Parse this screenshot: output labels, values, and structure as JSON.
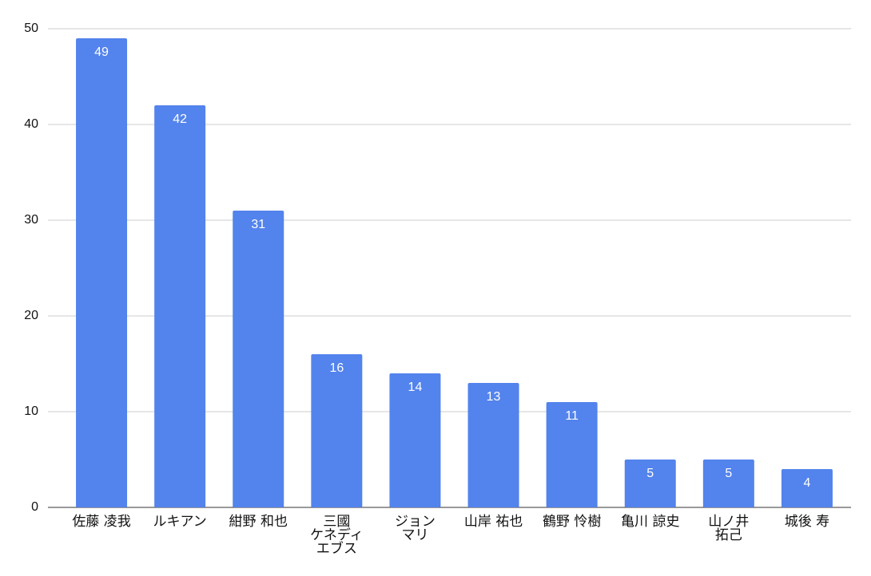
{
  "chart_data": {
    "type": "bar",
    "categories": [
      "佐藤 凌我",
      "ルキアン",
      "紺野 和也",
      "三國\nケネディ\nエブス",
      "ジョン\nマリ",
      "山岸 祐也",
      "鶴野 怜樹",
      "亀川 諒史",
      "山ノ井\n拓己",
      "城後 寿"
    ],
    "values": [
      49,
      42,
      31,
      16,
      14,
      13,
      11,
      5,
      5,
      4
    ],
    "color": "#5383ec",
    "ylim": [
      0,
      50
    ],
    "yticks": [
      0,
      10,
      20,
      30,
      40,
      50
    ],
    "grid": true,
    "value_labels_inside": true
  }
}
